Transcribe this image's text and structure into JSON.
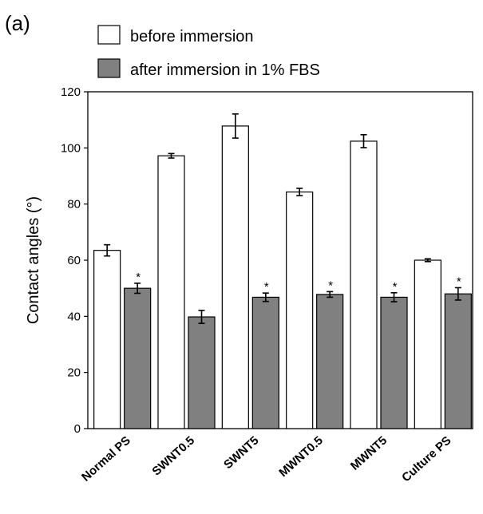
{
  "chart_data": {
    "type": "bar",
    "panel_label": "(a)",
    "title": "",
    "xlabel": "",
    "ylabel": "Contact angles (°)",
    "ylim": [
      0,
      120
    ],
    "yticks": [
      0,
      20,
      40,
      60,
      80,
      100,
      120
    ],
    "grid": false,
    "legend_position": "top",
    "categories": [
      "Normal PS",
      "SWNT0.5",
      "SWNT5",
      "MWNT0.5",
      "MWNT5",
      "Culture PS"
    ],
    "series": [
      {
        "name": "before immersion",
        "color": "#ffffff",
        "values": [
          63.5,
          97.2,
          107.8,
          84.3,
          102.4,
          60.0
        ],
        "errors": [
          2.0,
          0.8,
          4.3,
          1.3,
          2.3,
          0.5
        ],
        "markers": [
          "",
          "",
          "",
          "",
          "",
          ""
        ]
      },
      {
        "name": "after immersion in 1% FBS",
        "color": "#808080",
        "values": [
          50.0,
          39.8,
          46.8,
          47.8,
          46.8,
          48.0
        ],
        "errors": [
          1.8,
          2.3,
          1.5,
          1.0,
          1.6,
          2.2
        ],
        "markers": [
          "*",
          "",
          "*",
          "*",
          "*",
          "*"
        ]
      }
    ]
  }
}
